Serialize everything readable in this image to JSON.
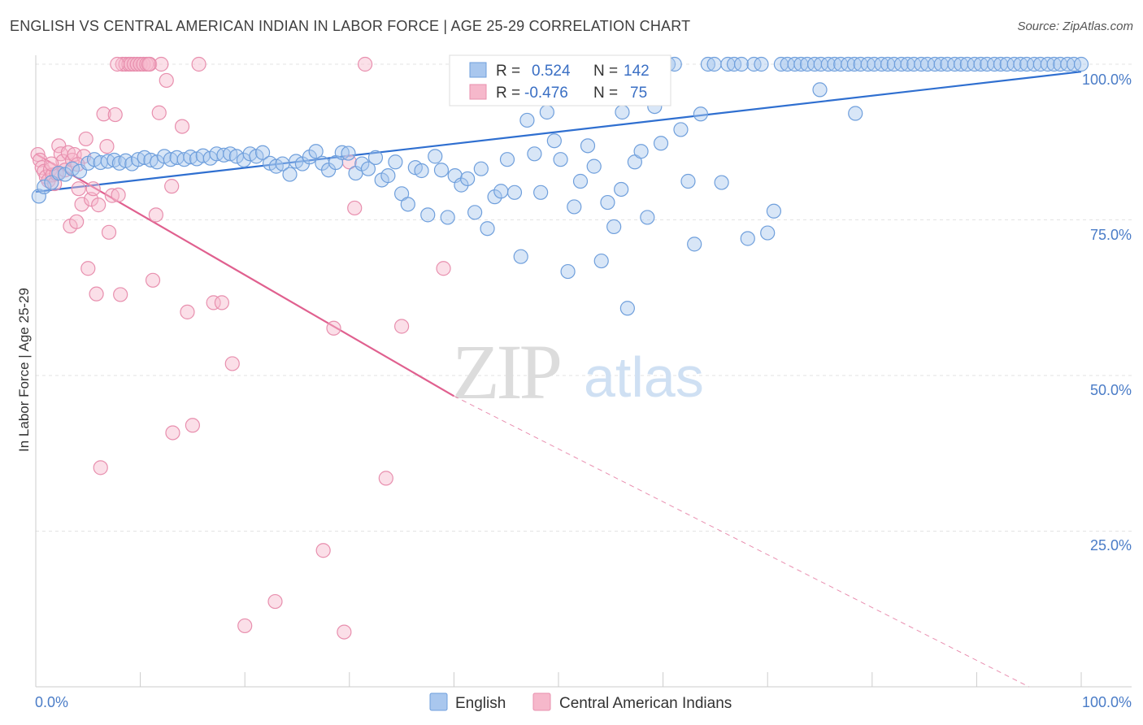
{
  "title": "ENGLISH VS CENTRAL AMERICAN INDIAN IN LABOR FORCE | AGE 25-29 CORRELATION CHART",
  "source": "Source: ZipAtlas.com",
  "watermark": {
    "zip": "ZIP",
    "atlas": "atlas"
  },
  "colors": {
    "blue_fill": "#a9c7ee",
    "blue_stroke": "#6f9fdc",
    "blue_line": "#2f6fd0",
    "pink_fill": "#f6b8cb",
    "pink_stroke": "#e88fae",
    "pink_line": "#e0608f",
    "tick_text": "#4a7cc7",
    "grid": "#e3e3e3"
  },
  "stats": [
    {
      "r_label": "R =",
      "r_value": "0.524",
      "n_label": "N =",
      "n_value": "142"
    },
    {
      "r_label": "R =",
      "r_value": "-0.476",
      "n_label": "N =",
      "n_value": "75"
    }
  ],
  "chart_data": {
    "type": "scatter",
    "title": "ENGLISH VS CENTRAL AMERICAN INDIAN IN LABOR FORCE | AGE 25-29 CORRELATION CHART",
    "xlabel": "",
    "ylabel": "In Labor Force | Age 25-29",
    "xlim": [
      0,
      100
    ],
    "ylim": [
      0,
      100
    ],
    "x_tick_labels": [
      "0.0%",
      "100.0%"
    ],
    "y_ticks": [
      25,
      50,
      75,
      100
    ],
    "y_tick_labels": [
      "25.0%",
      "50.0%",
      "75.0%",
      "100.0%"
    ],
    "grid": true,
    "legend_position": "bottom-center",
    "legend": [
      "English",
      "Central American Indians"
    ],
    "series": [
      {
        "name": "English",
        "r": 0.524,
        "n": 142,
        "trend": {
          "x": [
            0,
            100
          ],
          "y": [
            79.5,
            98.8
          ]
        },
        "points": [
          [
            0.3,
            78.8
          ],
          [
            0.8,
            80.3
          ],
          [
            1.5,
            81.0
          ],
          [
            2.2,
            82.5
          ],
          [
            2.8,
            82.3
          ],
          [
            3.5,
            83.2
          ],
          [
            4.2,
            82.8
          ],
          [
            5.0,
            84.1
          ],
          [
            5.6,
            84.7
          ],
          [
            6.2,
            84.2
          ],
          [
            6.9,
            84.4
          ],
          [
            7.5,
            84.6
          ],
          [
            8.0,
            84.1
          ],
          [
            8.6,
            84.5
          ],
          [
            9.2,
            84.0
          ],
          [
            9.8,
            84.7
          ],
          [
            10.4,
            85.0
          ],
          [
            11.0,
            84.6
          ],
          [
            11.6,
            84.3
          ],
          [
            12.3,
            85.2
          ],
          [
            12.9,
            84.7
          ],
          [
            13.5,
            85.0
          ],
          [
            14.2,
            84.7
          ],
          [
            14.8,
            85.1
          ],
          [
            15.4,
            84.8
          ],
          [
            16.0,
            85.3
          ],
          [
            16.7,
            84.9
          ],
          [
            17.3,
            85.6
          ],
          [
            18.0,
            85.4
          ],
          [
            18.6,
            85.6
          ],
          [
            19.2,
            85.2
          ],
          [
            19.9,
            84.6
          ],
          [
            20.5,
            85.6
          ],
          [
            21.1,
            85.2
          ],
          [
            21.7,
            85.8
          ],
          [
            22.4,
            84.1
          ],
          [
            23.0,
            83.6
          ],
          [
            23.6,
            84.0
          ],
          [
            24.3,
            82.3
          ],
          [
            24.9,
            84.4
          ],
          [
            25.5,
            84.0
          ],
          [
            26.2,
            85.1
          ],
          [
            26.8,
            86.0
          ],
          [
            27.4,
            84.1
          ],
          [
            28.0,
            83.0
          ],
          [
            28.7,
            84.2
          ],
          [
            29.3,
            85.8
          ],
          [
            29.9,
            85.7
          ],
          [
            30.6,
            82.5
          ],
          [
            31.2,
            84.0
          ],
          [
            31.8,
            83.2
          ],
          [
            32.5,
            85.0
          ],
          [
            33.1,
            81.4
          ],
          [
            33.7,
            82.1
          ],
          [
            34.4,
            84.3
          ],
          [
            35.0,
            79.2
          ],
          [
            35.6,
            77.5
          ],
          [
            36.3,
            83.4
          ],
          [
            36.9,
            82.9
          ],
          [
            37.5,
            75.8
          ],
          [
            38.2,
            85.2
          ],
          [
            38.8,
            83.0
          ],
          [
            39.4,
            75.4
          ],
          [
            40.1,
            82.1
          ],
          [
            40.7,
            80.6
          ],
          [
            41.3,
            81.6
          ],
          [
            42.0,
            76.2
          ],
          [
            42.6,
            83.2
          ],
          [
            43.2,
            73.6
          ],
          [
            43.9,
            78.7
          ],
          [
            44.5,
            79.6
          ],
          [
            45.1,
            84.7
          ],
          [
            45.8,
            79.4
          ],
          [
            46.4,
            69.1
          ],
          [
            47.0,
            91.0
          ],
          [
            47.7,
            85.6
          ],
          [
            48.3,
            79.4
          ],
          [
            48.9,
            92.3
          ],
          [
            49.6,
            87.7
          ],
          [
            50.2,
            84.7
          ],
          [
            50.9,
            66.7
          ],
          [
            51.5,
            77.1
          ],
          [
            52.1,
            81.2
          ],
          [
            52.8,
            86.9
          ],
          [
            53.4,
            83.6
          ],
          [
            54.1,
            68.4
          ],
          [
            54.7,
            77.8
          ],
          [
            55.3,
            73.9
          ],
          [
            56.0,
            79.9
          ],
          [
            56.6,
            60.8
          ],
          [
            57.3,
            84.3
          ],
          [
            57.9,
            86.0
          ],
          [
            58.5,
            75.4
          ],
          [
            59.2,
            93.2
          ],
          [
            59.8,
            87.3
          ],
          [
            60.5,
            100.0
          ],
          [
            61.1,
            100.0
          ],
          [
            61.7,
            89.5
          ],
          [
            62.4,
            81.2
          ],
          [
            63.0,
            71.1
          ],
          [
            63.6,
            92.0
          ],
          [
            64.3,
            100.0
          ],
          [
            64.9,
            100.0
          ],
          [
            65.6,
            81.0
          ],
          [
            66.2,
            100.0
          ],
          [
            66.8,
            100.0
          ],
          [
            67.5,
            100.0
          ],
          [
            68.1,
            72.0
          ],
          [
            68.7,
            100.0
          ],
          [
            69.4,
            100.0
          ],
          [
            70.0,
            72.9
          ],
          [
            70.6,
            76.4
          ],
          [
            71.3,
            100.0
          ],
          [
            71.9,
            100.0
          ],
          [
            72.6,
            100.0
          ],
          [
            73.2,
            100.0
          ],
          [
            73.8,
            100.0
          ],
          [
            74.5,
            100.0
          ],
          [
            75.1,
            100.0
          ],
          [
            75.8,
            100.0
          ],
          [
            76.4,
            100.0
          ],
          [
            77.0,
            100.0
          ],
          [
            77.7,
            100.0
          ],
          [
            78.3,
            100.0
          ],
          [
            78.9,
            100.0
          ],
          [
            79.6,
            100.0
          ],
          [
            80.2,
            100.0
          ],
          [
            80.9,
            100.0
          ],
          [
            81.5,
            100.0
          ],
          [
            82.1,
            100.0
          ],
          [
            82.8,
            100.0
          ],
          [
            83.4,
            100.0
          ],
          [
            84.0,
            100.0
          ],
          [
            84.7,
            100.0
          ],
          [
            85.3,
            100.0
          ],
          [
            86.0,
            100.0
          ],
          [
            86.6,
            100.0
          ],
          [
            87.2,
            100.0
          ],
          [
            87.9,
            100.0
          ],
          [
            88.5,
            100.0
          ],
          [
            89.1,
            100.0
          ],
          [
            89.8,
            100.0
          ],
          [
            90.4,
            100.0
          ],
          [
            91.0,
            100.0
          ],
          [
            91.7,
            100.0
          ],
          [
            92.3,
            100.0
          ],
          [
            92.9,
            100.0
          ],
          [
            93.6,
            100.0
          ],
          [
            94.2,
            100.0
          ],
          [
            94.8,
            100.0
          ],
          [
            95.5,
            100.0
          ],
          [
            96.1,
            100.0
          ],
          [
            96.8,
            100.0
          ],
          [
            97.4,
            100.0
          ],
          [
            98.0,
            100.0
          ],
          [
            98.7,
            100.0
          ],
          [
            99.3,
            100.0
          ],
          [
            100.0,
            100.0
          ],
          [
            75.0,
            95.9
          ],
          [
            78.4,
            92.1
          ],
          [
            52.0,
            96.0
          ],
          [
            56.1,
            92.3
          ]
        ]
      },
      {
        "name": "Central American Indians",
        "r": -0.476,
        "n": 75,
        "trend": {
          "x": [
            0,
            40,
            95
          ],
          "y": [
            85.6,
            46.7,
            0
          ],
          "solid_until_x": 40
        },
        "points": [
          [
            0.2,
            85.5
          ],
          [
            0.4,
            84.6
          ],
          [
            0.6,
            83.4
          ],
          [
            0.8,
            82.8
          ],
          [
            1.0,
            81.9
          ],
          [
            1.2,
            81.3
          ],
          [
            1.4,
            83.1
          ],
          [
            1.6,
            82.2
          ],
          [
            1.8,
            80.8
          ],
          [
            2.0,
            82.4
          ],
          [
            2.2,
            86.9
          ],
          [
            2.4,
            85.6
          ],
          [
            2.6,
            84.4
          ],
          [
            2.8,
            83.0
          ],
          [
            3.1,
            85.8
          ],
          [
            3.3,
            74.0
          ],
          [
            3.5,
            84.6
          ],
          [
            3.7,
            85.5
          ],
          [
            3.9,
            74.7
          ],
          [
            4.1,
            80.0
          ],
          [
            4.4,
            77.5
          ],
          [
            4.6,
            85.2
          ],
          [
            4.8,
            88.0
          ],
          [
            5.0,
            67.2
          ],
          [
            5.3,
            78.3
          ],
          [
            5.5,
            80.0
          ],
          [
            5.8,
            63.1
          ],
          [
            6.0,
            77.4
          ],
          [
            6.2,
            35.2
          ],
          [
            6.5,
            92.0
          ],
          [
            6.8,
            86.8
          ],
          [
            7.0,
            73.0
          ],
          [
            7.3,
            78.9
          ],
          [
            7.6,
            91.9
          ],
          [
            7.9,
            79.0
          ],
          [
            8.1,
            63.0
          ],
          [
            8.3,
            100.0
          ],
          [
            8.6,
            100.0
          ],
          [
            8.9,
            100.0
          ],
          [
            9.1,
            100.0
          ],
          [
            9.4,
            100.0
          ],
          [
            9.7,
            100.0
          ],
          [
            10.0,
            100.0
          ],
          [
            10.3,
            100.0
          ],
          [
            10.6,
            100.0
          ],
          [
            10.9,
            100.0
          ],
          [
            11.2,
            65.3
          ],
          [
            11.5,
            75.8
          ],
          [
            11.8,
            92.2
          ],
          [
            12.5,
            97.4
          ],
          [
            13.1,
            40.8
          ],
          [
            13.0,
            80.4
          ],
          [
            14.0,
            90.0
          ],
          [
            14.5,
            60.2
          ],
          [
            15.0,
            42.0
          ],
          [
            15.6,
            100.0
          ],
          [
            17.0,
            61.7
          ],
          [
            17.8,
            61.7
          ],
          [
            18.8,
            51.9
          ],
          [
            20.0,
            9.8
          ],
          [
            22.9,
            13.7
          ],
          [
            27.5,
            21.9
          ],
          [
            28.5,
            57.6
          ],
          [
            29.5,
            8.8
          ],
          [
            30.0,
            84.3
          ],
          [
            30.5,
            76.9
          ],
          [
            31.5,
            100.0
          ],
          [
            33.5,
            33.5
          ],
          [
            35.0,
            57.9
          ],
          [
            39.0,
            67.2
          ],
          [
            12.0,
            100.0
          ],
          [
            7.8,
            100.0
          ],
          [
            10.8,
            100.0
          ],
          [
            4.0,
            83.9
          ],
          [
            1.5,
            84.0
          ]
        ]
      }
    ]
  }
}
